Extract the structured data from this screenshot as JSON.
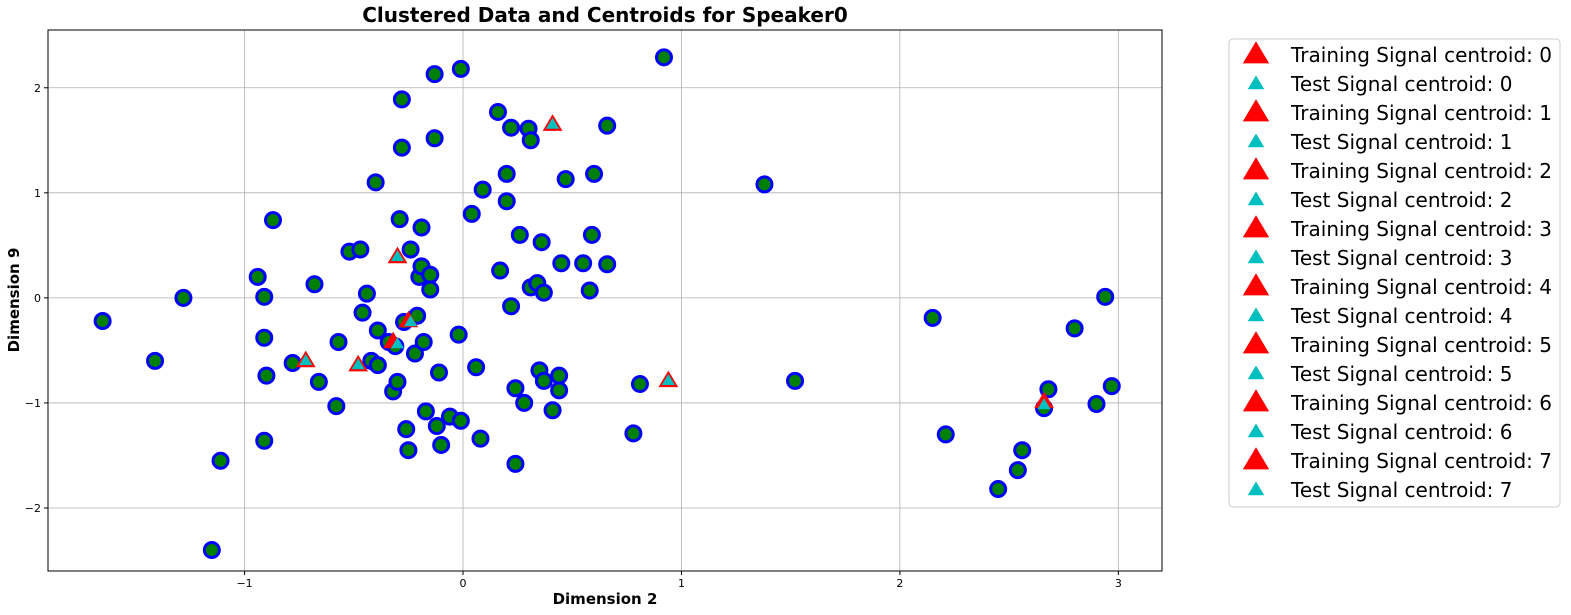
{
  "chart_data": {
    "type": "scatter",
    "title": "Clustered Data and Centroids for Speaker0",
    "xlabel": "Dimension 2",
    "ylabel": "Dimension 9",
    "xlim": [
      -1.9,
      3.2
    ],
    "ylim": [
      -2.6,
      2.55
    ],
    "xticks": [
      -1,
      0,
      1,
      2,
      3
    ],
    "yticks": [
      -2,
      -1,
      0,
      1,
      2
    ],
    "grid": true,
    "legend_position": "outside-right",
    "colors": {
      "point_fill": "#008000",
      "point_edge": "#0000ff",
      "train_centroid": "#ff0000",
      "test_centroid": "#00bfbf"
    },
    "series": [
      {
        "name": "",
        "marker": "circle",
        "points": [
          [
            -1.65,
            -0.22
          ],
          [
            -1.41,
            -0.6
          ],
          [
            -1.28,
            0.0
          ],
          [
            -1.11,
            -1.55
          ],
          [
            -1.15,
            -2.4
          ],
          [
            -0.94,
            0.2
          ],
          [
            -0.91,
            0.01
          ],
          [
            -0.91,
            -0.38
          ],
          [
            -0.9,
            -0.74
          ],
          [
            -0.91,
            -1.36
          ],
          [
            -0.87,
            0.74
          ],
          [
            -0.78,
            -0.62
          ],
          [
            -0.68,
            0.13
          ],
          [
            -0.66,
            -0.8
          ],
          [
            -0.58,
            -1.03
          ],
          [
            -0.57,
            -0.42
          ],
          [
            -0.52,
            0.44
          ],
          [
            -0.47,
            0.46
          ],
          [
            -0.46,
            -0.14
          ],
          [
            -0.44,
            0.04
          ],
          [
            -0.42,
            -0.6
          ],
          [
            -0.4,
            1.1
          ],
          [
            -0.39,
            -0.64
          ],
          [
            -0.39,
            -0.31
          ],
          [
            -0.34,
            -0.42
          ],
          [
            -0.31,
            -0.46
          ],
          [
            -0.32,
            -0.89
          ],
          [
            -0.3,
            -0.8
          ],
          [
            -0.29,
            0.75
          ],
          [
            -0.28,
            1.43
          ],
          [
            -0.28,
            1.89
          ],
          [
            -0.27,
            -0.23
          ],
          [
            -0.26,
            -1.25
          ],
          [
            -0.25,
            -1.45
          ],
          [
            -0.24,
            0.46
          ],
          [
            -0.22,
            -0.53
          ],
          [
            -0.21,
            -0.17
          ],
          [
            -0.2,
            0.2
          ],
          [
            -0.19,
            0.67
          ],
          [
            -0.19,
            0.3
          ],
          [
            -0.18,
            -0.42
          ],
          [
            -0.17,
            -1.08
          ],
          [
            -0.15,
            0.22
          ],
          [
            -0.15,
            0.08
          ],
          [
            -0.13,
            2.13
          ],
          [
            -0.13,
            1.52
          ],
          [
            -0.12,
            -1.22
          ],
          [
            -0.11,
            -0.71
          ],
          [
            -0.1,
            -1.4
          ],
          [
            -0.06,
            -1.13
          ],
          [
            -0.01,
            -1.17
          ],
          [
            -0.02,
            -0.35
          ],
          [
            -0.01,
            2.18
          ],
          [
            0.04,
            0.8
          ],
          [
            0.06,
            -0.66
          ],
          [
            0.08,
            -1.34
          ],
          [
            0.09,
            1.03
          ],
          [
            0.16,
            1.77
          ],
          [
            0.17,
            0.26
          ],
          [
            0.2,
            0.92
          ],
          [
            0.2,
            1.18
          ],
          [
            0.22,
            -0.08
          ],
          [
            0.22,
            1.62
          ],
          [
            0.24,
            -0.86
          ],
          [
            0.24,
            -1.58
          ],
          [
            0.26,
            0.6
          ],
          [
            0.28,
            -1.0
          ],
          [
            0.3,
            1.61
          ],
          [
            0.31,
            1.5
          ],
          [
            0.31,
            0.1
          ],
          [
            0.34,
            0.14
          ],
          [
            0.35,
            -0.69
          ],
          [
            0.36,
            0.53
          ],
          [
            0.37,
            0.05
          ],
          [
            0.37,
            -0.79
          ],
          [
            0.41,
            -1.07
          ],
          [
            0.44,
            -0.88
          ],
          [
            0.44,
            -0.74
          ],
          [
            0.45,
            0.33
          ],
          [
            0.47,
            1.13
          ],
          [
            0.55,
            0.33
          ],
          [
            0.58,
            0.07
          ],
          [
            0.59,
            0.6
          ],
          [
            0.6,
            1.18
          ],
          [
            0.66,
            0.32
          ],
          [
            0.66,
            1.64
          ],
          [
            0.78,
            -1.29
          ],
          [
            0.81,
            -0.82
          ],
          [
            0.92,
            2.29
          ],
          [
            1.38,
            1.08
          ],
          [
            1.52,
            -0.79
          ],
          [
            2.15,
            -0.19
          ],
          [
            2.21,
            -1.3
          ],
          [
            2.45,
            -1.82
          ],
          [
            2.54,
            -1.64
          ],
          [
            2.56,
            -1.45
          ],
          [
            2.66,
            -1.05
          ],
          [
            2.68,
            -0.87
          ],
          [
            2.8,
            -0.29
          ],
          [
            2.9,
            -1.01
          ],
          [
            2.94,
            0.01
          ],
          [
            2.97,
            -0.84
          ]
        ]
      }
    ],
    "centroids": [
      {
        "id": 0,
        "train": [
          0.41,
          1.65
        ],
        "test": [
          0.41,
          1.65
        ]
      },
      {
        "id": 1,
        "train": [
          -0.3,
          0.39
        ],
        "test": [
          -0.3,
          0.39
        ]
      },
      {
        "id": 2,
        "train": [
          -0.72,
          -0.6
        ],
        "test": [
          -0.72,
          -0.6
        ]
      },
      {
        "id": 3,
        "train": [
          -0.48,
          -0.64
        ],
        "test": [
          -0.48,
          -0.64
        ]
      },
      {
        "id": 4,
        "train": [
          0.94,
          -0.79
        ],
        "test": [
          0.94,
          -0.79
        ]
      },
      {
        "id": 5,
        "train": [
          2.66,
          -0.99
        ],
        "test": [
          2.66,
          -1.02
        ]
      },
      {
        "id": 6,
        "train": [
          -0.32,
          -0.42
        ],
        "test": [
          -0.3,
          -0.44
        ]
      },
      {
        "id": 7,
        "train": [
          -0.25,
          -0.22
        ],
        "test": [
          -0.24,
          -0.23
        ]
      }
    ],
    "legend": [
      {
        "label": "Training Signal centroid: 0",
        "kind": "train"
      },
      {
        "label": "Test Signal centroid: 0",
        "kind": "test"
      },
      {
        "label": "Training Signal centroid: 1",
        "kind": "train"
      },
      {
        "label": "Test Signal centroid: 1",
        "kind": "test"
      },
      {
        "label": "Training Signal centroid: 2",
        "kind": "train"
      },
      {
        "label": "Test Signal centroid: 2",
        "kind": "test"
      },
      {
        "label": "Training Signal centroid: 3",
        "kind": "train"
      },
      {
        "label": "Test Signal centroid: 3",
        "kind": "test"
      },
      {
        "label": "Training Signal centroid: 4",
        "kind": "train"
      },
      {
        "label": "Test Signal centroid: 4",
        "kind": "test"
      },
      {
        "label": "Training Signal centroid: 5",
        "kind": "train"
      },
      {
        "label": "Test Signal centroid: 5",
        "kind": "test"
      },
      {
        "label": "Training Signal centroid: 6",
        "kind": "train"
      },
      {
        "label": "Test Signal centroid: 6",
        "kind": "test"
      },
      {
        "label": "Training Signal centroid: 7",
        "kind": "train"
      },
      {
        "label": "Test Signal centroid: 7",
        "kind": "test"
      }
    ]
  }
}
